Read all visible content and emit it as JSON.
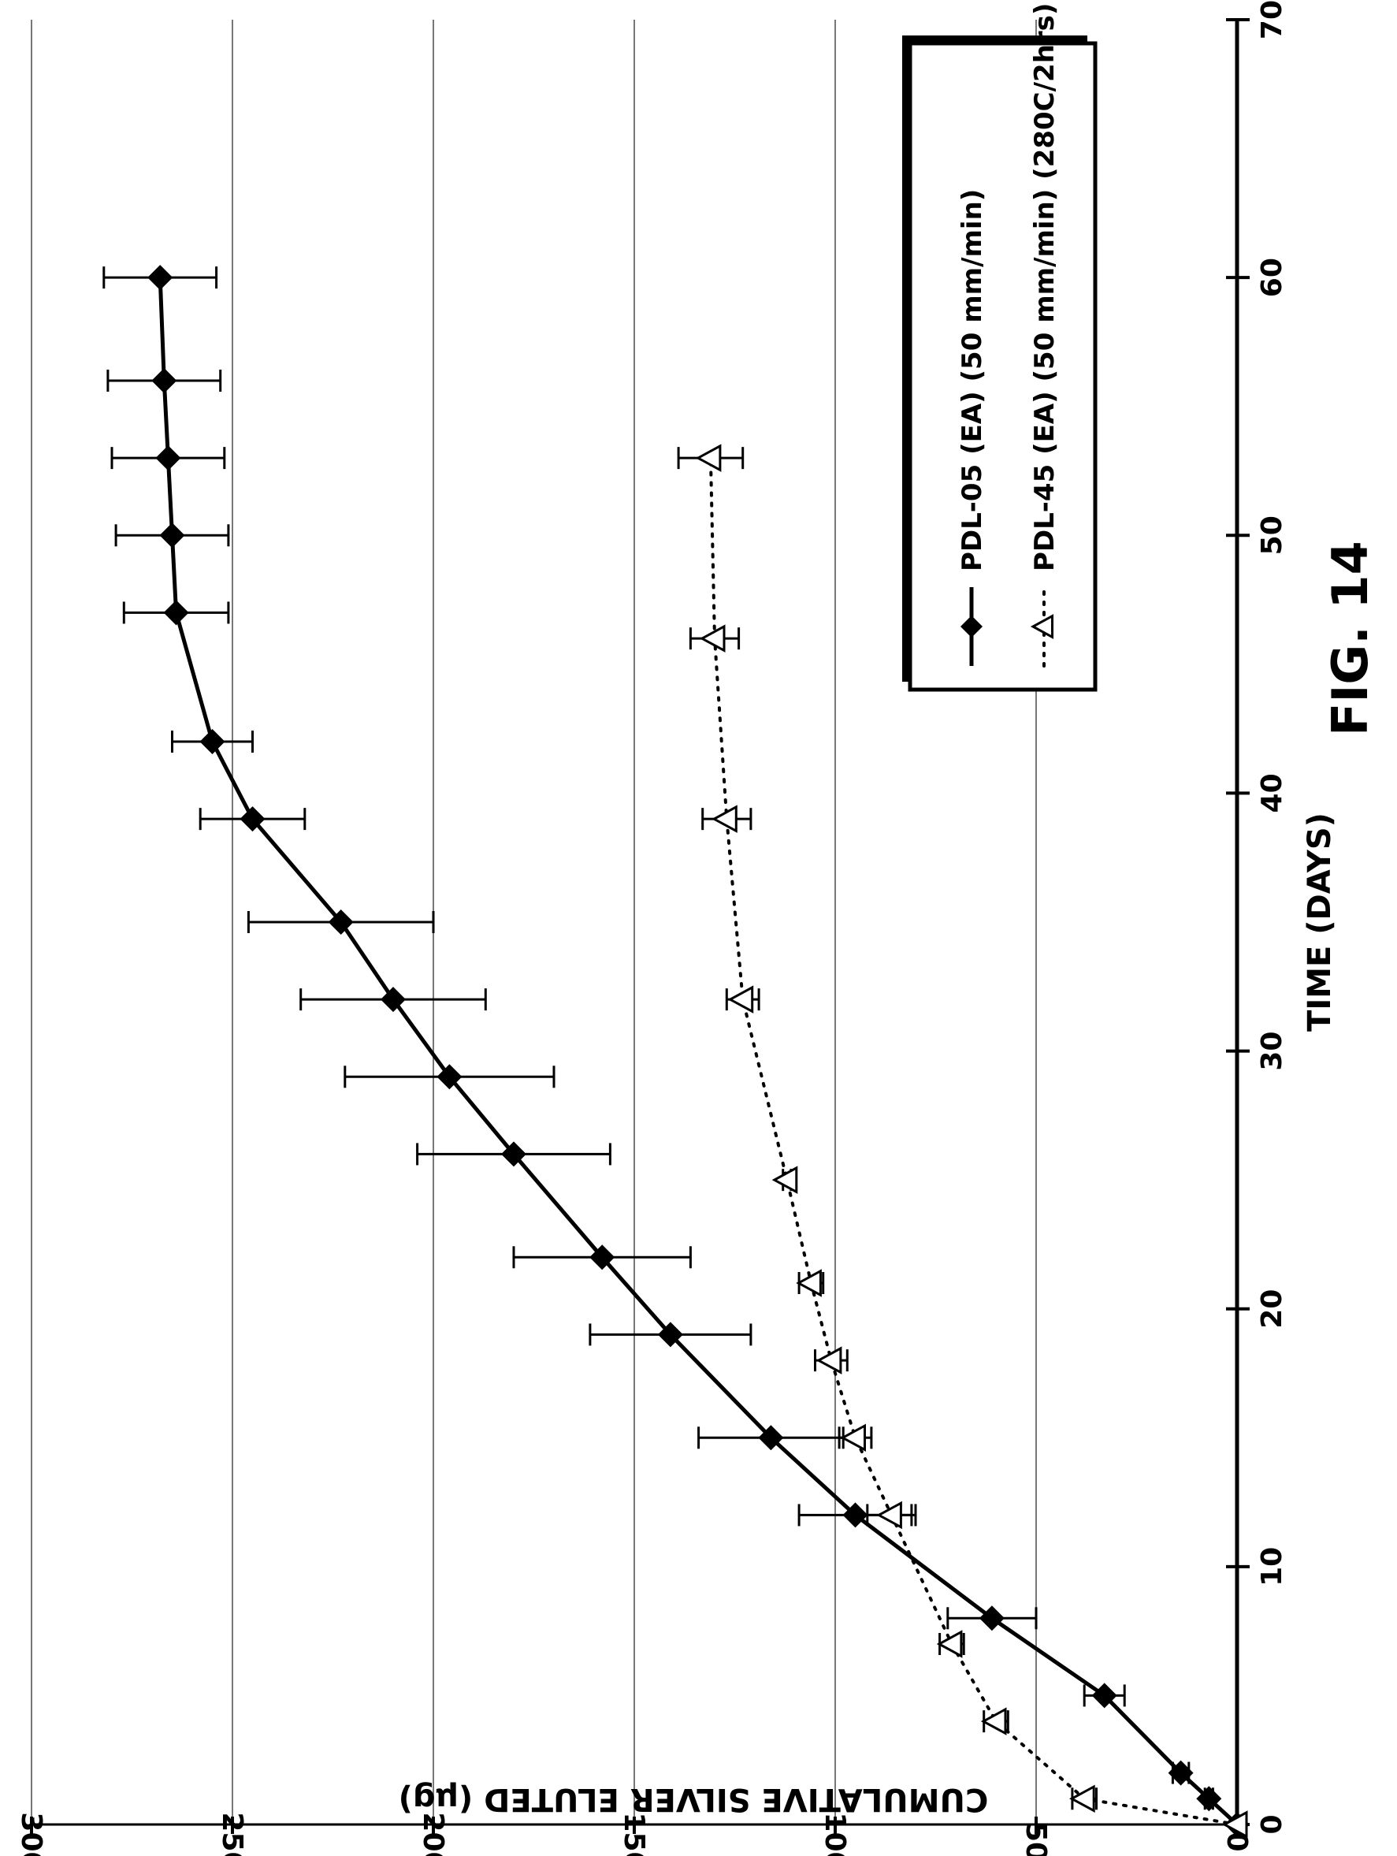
{
  "figure_label": "FIG. 14",
  "chart_data": {
    "type": "line",
    "xlabel": "TIME (DAYS)",
    "ylabel": "CUMULATIVE SILVER ELUTED (µg)",
    "xlim": [
      0,
      70
    ],
    "ylim": [
      0,
      300
    ],
    "xticks": [
      "0",
      "10",
      "20",
      "30",
      "40",
      "50",
      "60",
      "70"
    ],
    "yticks": [
      "0",
      "50",
      "100",
      "150",
      "200",
      "250",
      "300"
    ],
    "grid": "horizontal",
    "legend_position": "top-right",
    "series": [
      {
        "name": "PDL-05 (EA) (50 mm/min)",
        "marker": "filled-diamond",
        "line": "solid",
        "color": "#000000",
        "x": [
          0,
          1,
          2,
          5,
          8,
          12,
          15,
          19,
          22,
          26,
          29,
          32,
          35,
          39,
          42,
          47,
          50,
          53,
          56,
          60
        ],
        "y": [
          0,
          7,
          14,
          33,
          61,
          95,
          116,
          141,
          158,
          180,
          196,
          210,
          223,
          245,
          255,
          264,
          265,
          266,
          267,
          268
        ],
        "error": [
          0,
          1,
          2,
          5,
          11,
          14,
          18,
          20,
          22,
          24,
          26,
          23,
          23,
          13,
          10,
          13,
          14,
          14,
          14,
          14
        ]
      },
      {
        "name": "PDL-45 (EA) (50 mm/min) (280C/2hrs)",
        "marker": "open-triangle",
        "line": "dotted",
        "color": "#000000",
        "x": [
          0,
          1,
          4,
          7,
          12,
          15,
          18,
          21,
          25,
          32,
          39,
          46,
          53
        ],
        "y": [
          0,
          38,
          60,
          71,
          86,
          95,
          101,
          106,
          112,
          123,
          127,
          130,
          131
        ],
        "error": [
          0,
          3,
          3,
          3,
          6,
          4,
          4,
          3,
          1,
          4,
          6,
          6,
          8
        ]
      }
    ]
  }
}
